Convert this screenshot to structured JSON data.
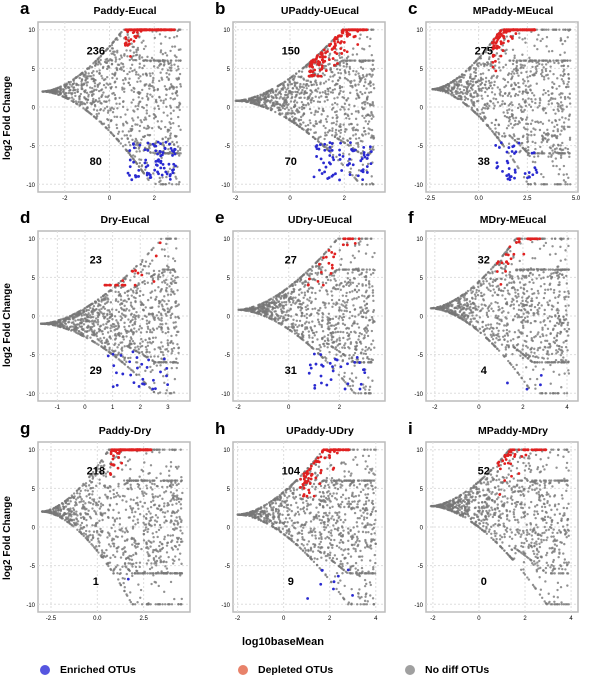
{
  "chart_data": [
    {
      "letter": "a",
      "title": "Paddy-Eucal",
      "type": "scatter",
      "xlim": [
        -3.2,
        3.6
      ],
      "xticks": [
        -2,
        0,
        2
      ],
      "ylim": [
        -11,
        11
      ],
      "yticks": [
        -10,
        -5,
        0,
        5,
        10
      ],
      "enriched_count": "80",
      "depleted_count": "236",
      "tip": [
        -3,
        2
      ]
    },
    {
      "letter": "b",
      "title": "UPaddy-UEucal",
      "type": "scatter",
      "xlim": [
        -2.1,
        3.5
      ],
      "xticks": [
        -2,
        0,
        2
      ],
      "ylim": [
        -11,
        11
      ],
      "yticks": [
        -10,
        -5,
        0,
        5,
        10
      ],
      "enriched_count": "70",
      "depleted_count": "150",
      "tip": [
        -2,
        0.8
      ]
    },
    {
      "letter": "c",
      "title": "MPaddy-MEucal",
      "type": "scatter",
      "xlim": [
        -2.7,
        5.1
      ],
      "xticks": [
        "-2.5",
        "0.0",
        "2.5",
        "5.0"
      ],
      "ylim": [
        -11,
        11
      ],
      "yticks": [
        -10,
        -5,
        0,
        5,
        10
      ],
      "enriched_count": "38",
      "depleted_count": "275",
      "tip": [
        -2.4,
        2.3
      ]
    },
    {
      "letter": "d",
      "title": "Dry-Eucal",
      "type": "scatter",
      "xlim": [
        -1.7,
        3.8
      ],
      "xticks": [
        -1,
        0,
        1,
        2,
        3
      ],
      "ylim": [
        -11,
        11
      ],
      "yticks": [
        -10,
        -5,
        0,
        5,
        10
      ],
      "enriched_count": "29",
      "depleted_count": "23",
      "tip": [
        -1.6,
        -1
      ]
    },
    {
      "letter": "e",
      "title": "UDry-UEucal",
      "type": "scatter",
      "xlim": [
        -2.2,
        3.8
      ],
      "xticks": [
        -2,
        0,
        2
      ],
      "ylim": [
        -11,
        11
      ],
      "yticks": [
        -10,
        -5,
        0,
        5,
        10
      ],
      "enriched_count": "31",
      "depleted_count": "27",
      "tip": [
        -2,
        0.8
      ]
    },
    {
      "letter": "f",
      "title": "MDry-MEucal",
      "type": "scatter",
      "xlim": [
        -2.4,
        4.5
      ],
      "xticks": [
        -2,
        0,
        2,
        4
      ],
      "ylim": [
        -11,
        11
      ],
      "yticks": [
        -10,
        -5,
        0,
        5,
        10
      ],
      "enriched_count": "4",
      "depleted_count": "32",
      "tip": [
        -2.2,
        1
      ]
    },
    {
      "letter": "g",
      "title": "Paddy-Dry",
      "type": "scatter",
      "xlim": [
        -3.2,
        5
      ],
      "xticks": [
        "-2.5",
        "0.0",
        "2.5"
      ],
      "ylim": [
        -11,
        11
      ],
      "yticks": [
        -10,
        -5,
        0,
        5,
        10
      ],
      "enriched_count": "1",
      "depleted_count": "218",
      "tip": [
        -3,
        2
      ]
    },
    {
      "letter": "h",
      "title": "UPaddy-UDry",
      "type": "scatter",
      "xlim": [
        -2.2,
        4.4
      ],
      "xticks": [
        -2,
        0,
        2,
        4
      ],
      "ylim": [
        -11,
        11
      ],
      "yticks": [
        -10,
        -5,
        0,
        5,
        10
      ],
      "enriched_count": "9",
      "depleted_count": "104",
      "tip": [
        -2,
        1.6
      ]
    },
    {
      "letter": "i",
      "title": "MPaddy-MDry",
      "type": "scatter",
      "xlim": [
        -2.3,
        4.3
      ],
      "xticks": [
        -2,
        0,
        2,
        4
      ],
      "ylim": [
        -11,
        11
      ],
      "yticks": [
        -10,
        -5,
        0,
        5,
        10
      ],
      "enriched_count": "0",
      "depleted_count": "52",
      "tip": [
        -2.1,
        2.7
      ]
    }
  ],
  "ylabel": "log2 Fold Change",
  "xlabel": "log10baseMean",
  "legend": [
    {
      "label": "Enriched OTUs",
      "color": "#5555e0"
    },
    {
      "label": "Depleted OTUs",
      "color": "#e8826a"
    },
    {
      "label": "No diff OTUs",
      "color": "#a0a0a0"
    }
  ],
  "colors": {
    "enriched": "#2a2ad0",
    "depleted": "#e02020",
    "nodiff": "#777777"
  }
}
